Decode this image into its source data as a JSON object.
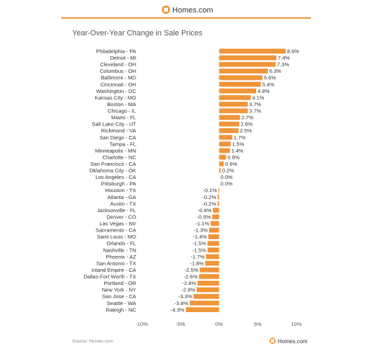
{
  "header": {
    "logo_text": "Homes.com",
    "logo_icon": "homes-logo-icon"
  },
  "footer": {
    "source": "Source: Homes.com",
    "logo_text": "Homes.com"
  },
  "chart_data": {
    "type": "bar",
    "orientation": "horizontal",
    "title": "Year-Over-Year Change in Sale Prices",
    "bar_color": "#f0953a",
    "xlim": [
      -10,
      10
    ],
    "x_ticks": [
      -10,
      -5,
      0,
      5,
      10
    ],
    "x_tick_labels": [
      "-10%",
      "-5%",
      "0%",
      "5%",
      "10%"
    ],
    "categories": [
      "Philadelphia - PA",
      "Detroit - MI",
      "Cleveland - OH",
      "Columbus - OH",
      "Baltimore - MD",
      "Cincinnati - OH",
      "Washington - DC",
      "Kansas City - MO",
      "Boston - MA",
      "Chicago - IL",
      "Miami - FL",
      "Salt Lake City - UT",
      "Richmond - VA",
      "San Diego - CA",
      "Tampa - FL",
      "Minneapolis - MN",
      "Charlotte - NC",
      "San Francisco - CA",
      "Oklahoma City - OK",
      "Los Angeles - CA",
      "Pittsburgh - PA",
      "Houston - TX",
      "Atlanta - GA",
      "Austin - TX",
      "Jacksonville - FL",
      "Denver - CO",
      "Las Vegas - NV",
      "Sacramento - CA",
      "Saint Louis - MO",
      "Orlando - FL",
      "Nashville - TN",
      "Phoenix - AZ",
      "San Antonio - TX",
      "Inland Empire - CA",
      "Dallas-Fort Worth - TX",
      "Portland - OR",
      "New York - NY",
      "San Jose - CA",
      "Seattle - WA",
      "Raleigh - NC"
    ],
    "values": [
      8.6,
      7.4,
      7.3,
      6.3,
      5.6,
      5.4,
      4.8,
      4.1,
      3.7,
      3.7,
      2.7,
      2.6,
      2.5,
      1.7,
      1.5,
      1.4,
      0.9,
      0.6,
      0.2,
      0.0,
      0.0,
      -0.1,
      -0.2,
      -0.2,
      -0.8,
      -0.9,
      -1.1,
      -1.3,
      -1.4,
      -1.5,
      -1.5,
      -1.7,
      -1.8,
      -2.5,
      -2.6,
      -2.8,
      -2.9,
      -3.3,
      -3.8,
      -4.3
    ],
    "value_labels": [
      "8.6%",
      "7.4%",
      "7.3%",
      "6.3%",
      "5.6%",
      "5.4%",
      "4.8%",
      "4.1%",
      "3.7%",
      "3.7%",
      "2.7%",
      "2.6%",
      "2.5%",
      "1.7%",
      "1.5%",
      "1.4%",
      "0.9%",
      "0.6%",
      "0.2%",
      "0.0%",
      "0.0%",
      "-0.1%",
      "-0.2%",
      "-0.2%",
      "-0.8%",
      "-0.9%",
      "-1.1%",
      "-1.3%",
      "-1.4%",
      "-1.5%",
      "-1.5%",
      "-1.7%",
      "-1.8%",
      "-2.5%",
      "-2.6%",
      "-2.8%",
      "-2.9%",
      "-3.3%",
      "-3.8%",
      "-4.3%"
    ]
  }
}
